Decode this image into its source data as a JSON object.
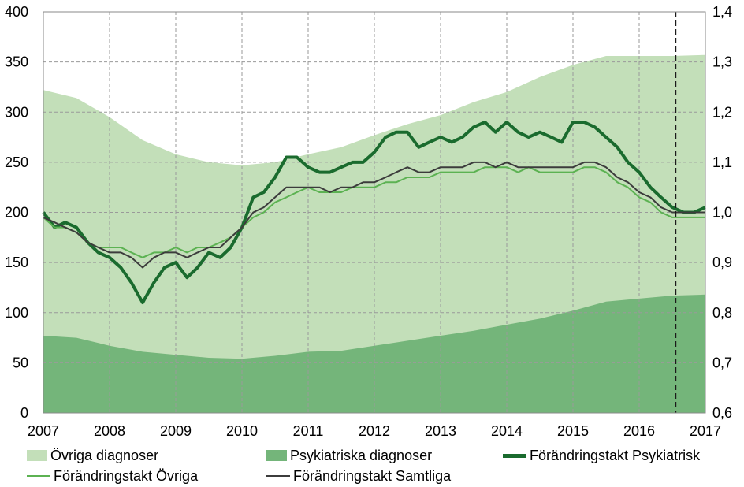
{
  "chart_data": {
    "type": "area",
    "x_ticks": [
      "2007",
      "2008",
      "2009",
      "2010",
      "2011",
      "2012",
      "2013",
      "2014",
      "2015",
      "2016",
      "2017"
    ],
    "y_left_ticks": [
      "0",
      "50",
      "100",
      "150",
      "200",
      "250",
      "300",
      "350",
      "400"
    ],
    "y_right_ticks": [
      "0,6",
      "0,7",
      "0,8",
      "0,9",
      "1,0",
      "1,1",
      "1,2",
      "1,3",
      "1,4"
    ],
    "y_left_range": [
      0,
      400
    ],
    "y_right_range": [
      0.6,
      1.4
    ],
    "x_range": [
      2007,
      2017
    ],
    "grid": true,
    "legend_position": "bottom",
    "vertical_marker_x": 2016.55,
    "series": [
      {
        "name": "Övriga diagnoser",
        "kind": "area",
        "axis": "left",
        "color": "#c3dfb9",
        "x": [
          2007.0,
          2007.5,
          2008.0,
          2008.5,
          2009.0,
          2009.5,
          2010.0,
          2010.5,
          2011.0,
          2011.5,
          2012.0,
          2012.5,
          2013.0,
          2013.5,
          2014.0,
          2014.5,
          2015.0,
          2015.5,
          2016.0,
          2016.5,
          2017.0
        ],
        "values": [
          322,
          314,
          295,
          272,
          258,
          250,
          247,
          250,
          258,
          265,
          277,
          288,
          297,
          310,
          320,
          335,
          347,
          356,
          356,
          356,
          357
        ]
      },
      {
        "name": "Psykiatriska diagnoser",
        "kind": "area",
        "axis": "left",
        "color": "#74b57a",
        "x": [
          2007.0,
          2007.5,
          2008.0,
          2008.5,
          2009.0,
          2009.5,
          2010.0,
          2010.5,
          2011.0,
          2011.5,
          2012.0,
          2012.5,
          2013.0,
          2013.5,
          2014.0,
          2014.5,
          2015.0,
          2015.5,
          2016.0,
          2016.5,
          2017.0
        ],
        "values": [
          77,
          75,
          67,
          61,
          58,
          55,
          54,
          57,
          61,
          62,
          67,
          72,
          77,
          82,
          88,
          94,
          102,
          111,
          114,
          117,
          118
        ]
      },
      {
        "name": "Förändringstakt Psykiatrisk",
        "kind": "line",
        "axis": "right",
        "color": "#1a6b2e",
        "width": 4,
        "x": [
          2007.0,
          2007.17,
          2007.33,
          2007.5,
          2007.67,
          2007.83,
          2008.0,
          2008.17,
          2008.33,
          2008.5,
          2008.67,
          2008.83,
          2009.0,
          2009.17,
          2009.33,
          2009.5,
          2009.67,
          2009.83,
          2010.0,
          2010.17,
          2010.33,
          2010.5,
          2010.67,
          2010.83,
          2011.0,
          2011.17,
          2011.33,
          2011.5,
          2011.67,
          2011.83,
          2012.0,
          2012.17,
          2012.33,
          2012.5,
          2012.67,
          2012.83,
          2013.0,
          2013.17,
          2013.33,
          2013.5,
          2013.67,
          2013.83,
          2014.0,
          2014.17,
          2014.33,
          2014.5,
          2014.67,
          2014.83,
          2015.0,
          2015.17,
          2015.33,
          2015.5,
          2015.67,
          2015.83,
          2016.0,
          2016.17,
          2016.33,
          2016.5,
          2016.67,
          2016.83,
          2017.0
        ],
        "values": [
          1.0,
          0.97,
          0.98,
          0.97,
          0.94,
          0.92,
          0.91,
          0.89,
          0.86,
          0.82,
          0.86,
          0.89,
          0.9,
          0.87,
          0.89,
          0.92,
          0.91,
          0.93,
          0.97,
          1.03,
          1.04,
          1.07,
          1.11,
          1.11,
          1.09,
          1.08,
          1.08,
          1.09,
          1.1,
          1.1,
          1.12,
          1.15,
          1.16,
          1.16,
          1.13,
          1.14,
          1.15,
          1.14,
          1.15,
          1.17,
          1.18,
          1.16,
          1.18,
          1.16,
          1.15,
          1.16,
          1.15,
          1.14,
          1.18,
          1.18,
          1.17,
          1.15,
          1.13,
          1.1,
          1.08,
          1.05,
          1.03,
          1.01,
          1.0,
          1.0,
          1.01
        ]
      },
      {
        "name": "Förändringstakt Övriga",
        "kind": "line",
        "axis": "right",
        "color": "#5cb252",
        "width": 2,
        "x": [
          2007.0,
          2007.17,
          2007.33,
          2007.5,
          2007.67,
          2007.83,
          2008.0,
          2008.17,
          2008.33,
          2008.5,
          2008.67,
          2008.83,
          2009.0,
          2009.17,
          2009.33,
          2009.5,
          2009.67,
          2009.83,
          2010.0,
          2010.17,
          2010.33,
          2010.5,
          2010.67,
          2010.83,
          2011.0,
          2011.17,
          2011.33,
          2011.5,
          2011.67,
          2011.83,
          2012.0,
          2012.17,
          2012.33,
          2012.5,
          2012.67,
          2012.83,
          2013.0,
          2013.17,
          2013.33,
          2013.5,
          2013.67,
          2013.83,
          2014.0,
          2014.17,
          2014.33,
          2014.5,
          2014.67,
          2014.83,
          2015.0,
          2015.17,
          2015.33,
          2015.5,
          2015.67,
          2015.83,
          2016.0,
          2016.17,
          2016.33,
          2016.5,
          2016.67,
          2016.83,
          2017.0
        ],
        "values": [
          0.99,
          0.97,
          0.97,
          0.96,
          0.94,
          0.93,
          0.93,
          0.93,
          0.92,
          0.91,
          0.92,
          0.92,
          0.93,
          0.92,
          0.93,
          0.93,
          0.94,
          0.95,
          0.97,
          0.99,
          1.0,
          1.02,
          1.03,
          1.04,
          1.05,
          1.04,
          1.04,
          1.04,
          1.05,
          1.05,
          1.05,
          1.06,
          1.06,
          1.07,
          1.07,
          1.07,
          1.08,
          1.08,
          1.08,
          1.08,
          1.09,
          1.09,
          1.09,
          1.08,
          1.09,
          1.08,
          1.08,
          1.08,
          1.08,
          1.09,
          1.09,
          1.08,
          1.06,
          1.05,
          1.03,
          1.02,
          1.0,
          0.99,
          0.99,
          0.99,
          0.99
        ]
      },
      {
        "name": "Förändringstakt Samtliga",
        "kind": "line",
        "axis": "right",
        "color": "#3c3c3c",
        "width": 2,
        "x": [
          2007.0,
          2007.17,
          2007.33,
          2007.5,
          2007.67,
          2007.83,
          2008.0,
          2008.17,
          2008.33,
          2008.5,
          2008.67,
          2008.83,
          2009.0,
          2009.17,
          2009.33,
          2009.5,
          2009.67,
          2009.83,
          2010.0,
          2010.17,
          2010.33,
          2010.5,
          2010.67,
          2010.83,
          2011.0,
          2011.17,
          2011.33,
          2011.5,
          2011.67,
          2011.83,
          2012.0,
          2012.17,
          2012.33,
          2012.5,
          2012.67,
          2012.83,
          2013.0,
          2013.17,
          2013.33,
          2013.5,
          2013.67,
          2013.83,
          2014.0,
          2014.17,
          2014.33,
          2014.5,
          2014.67,
          2014.83,
          2015.0,
          2015.17,
          2015.33,
          2015.5,
          2015.67,
          2015.83,
          2016.0,
          2016.17,
          2016.33,
          2016.5,
          2016.67,
          2016.83,
          2017.0
        ],
        "values": [
          0.99,
          0.98,
          0.97,
          0.96,
          0.94,
          0.93,
          0.92,
          0.92,
          0.91,
          0.89,
          0.91,
          0.92,
          0.92,
          0.91,
          0.92,
          0.93,
          0.93,
          0.95,
          0.97,
          1.0,
          1.01,
          1.03,
          1.05,
          1.05,
          1.05,
          1.05,
          1.04,
          1.05,
          1.05,
          1.06,
          1.06,
          1.07,
          1.08,
          1.09,
          1.08,
          1.08,
          1.09,
          1.09,
          1.09,
          1.1,
          1.1,
          1.09,
          1.1,
          1.09,
          1.09,
          1.09,
          1.09,
          1.09,
          1.09,
          1.1,
          1.1,
          1.09,
          1.07,
          1.06,
          1.04,
          1.03,
          1.01,
          1.0,
          1.0,
          1.0,
          1.0
        ]
      }
    ]
  },
  "legend": {
    "items": [
      {
        "label": "Övriga diagnoser",
        "color": "#c3dfb9"
      },
      {
        "label": "Psykiatriska diagnoser",
        "color": "#74b57a"
      },
      {
        "label": "Förändringstakt Psykiatrisk",
        "color": "#1a6b2e"
      },
      {
        "label": "Förändringstakt Övriga",
        "color": "#5cb252"
      },
      {
        "label": "Förändringstakt Samtliga",
        "color": "#3c3c3c"
      }
    ]
  }
}
